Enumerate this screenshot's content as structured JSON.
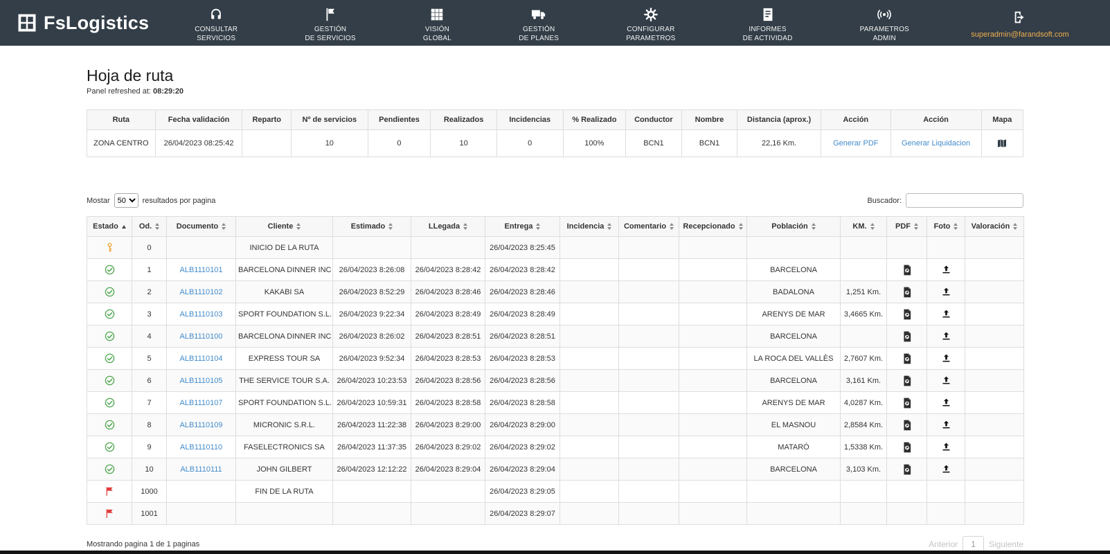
{
  "colors": {
    "navbar": "#333e48",
    "link": "#428bca",
    "success": "#47a447",
    "warning": "#f0a63c",
    "danger": "#e03b3b",
    "email": "#f0ad4e"
  },
  "brand": {
    "name": "FsLogistics",
    "icon": "brand-icon"
  },
  "nav": {
    "items": [
      {
        "icon": "headset-icon",
        "label_lines": [
          "CONSULTAR",
          "SERVICIOS"
        ]
      },
      {
        "icon": "flag-icon",
        "label_lines": [
          "GESTIÓN",
          "DE SERVICIOS"
        ]
      },
      {
        "icon": "grid-icon",
        "label_lines": [
          "VISIÓN",
          "GLOBAL"
        ]
      },
      {
        "icon": "truck-icon",
        "label_lines": [
          "GESTIÓN",
          "DE PLANES"
        ]
      },
      {
        "icon": "gear-icon",
        "label_lines": [
          "CONFIGURAR",
          "PARAMETROS"
        ]
      },
      {
        "icon": "report-icon",
        "label_lines": [
          "INFORMES",
          "DE ACTIVIDAD"
        ]
      },
      {
        "icon": "signal-icon",
        "label_lines": [
          "PARAMETROS",
          "ADMIN"
        ]
      }
    ],
    "user_email": "superadmin@farandsoft.com",
    "logout_icon": "logout-icon"
  },
  "page": {
    "title": "Hoja de ruta",
    "refreshed_label": "Panel refreshed at:",
    "refreshed_time": "08:29:20"
  },
  "summary_table": {
    "headers": [
      "Ruta",
      "Fecha validación",
      "Reparto",
      "Nº de servicios",
      "Pendientes",
      "Realizados",
      "Incidencias",
      "% Realizado",
      "Conductor",
      "Nombre",
      "Distancia (aprox.)",
      "Acción",
      "Acción",
      "Mapa"
    ],
    "row": {
      "ruta": "ZONA CENTRO",
      "fecha_validacion": "26/04/2023 08:25:42",
      "reparto": "",
      "n_servicios": "10",
      "pendientes": "0",
      "realizados": "10",
      "incidencias": "0",
      "pct_realizado": "100%",
      "conductor": "BCN1",
      "nombre": "BCN1",
      "distancia": "22,16 Km.",
      "accion_pdf": "Generar PDF",
      "accion_liquidacion": "Generar Liquidacion",
      "mapa_icon": "map-icon"
    }
  },
  "controls": {
    "show_label": "Mostar",
    "page_size": "50",
    "show_suffix": "resultados por pagina",
    "search_label": "Buscador:",
    "search_value": ""
  },
  "services_table": {
    "columns": [
      {
        "label": "Estado",
        "sort": "asc"
      },
      {
        "label": "Od.",
        "sort": "both"
      },
      {
        "label": "Documento",
        "sort": "both"
      },
      {
        "label": "Cliente",
        "sort": "both"
      },
      {
        "label": "Estimado",
        "sort": "both"
      },
      {
        "label": "LLegada",
        "sort": "both"
      },
      {
        "label": "Entrega",
        "sort": "both"
      },
      {
        "label": "Incidencia",
        "sort": "both"
      },
      {
        "label": "Comentario",
        "sort": "both"
      },
      {
        "label": "Recepcionado",
        "sort": "both"
      },
      {
        "label": "Población",
        "sort": "both"
      },
      {
        "label": "KM.",
        "sort": "both"
      },
      {
        "label": "PDF",
        "sort": "both"
      },
      {
        "label": "Foto",
        "sort": "both"
      },
      {
        "label": "Valoración",
        "sort": "both"
      }
    ],
    "rows": [
      {
        "status_icon": "key-icon",
        "od": "0",
        "documento": "",
        "cliente": "INICIO DE LA RUTA",
        "estimado": "",
        "llegada": "",
        "entrega": "26/04/2023 8:25:45",
        "incidencia": "",
        "comentario": "",
        "recepcionado": "",
        "poblacion": "",
        "km": "",
        "pdf": false,
        "foto": false,
        "valoracion": ""
      },
      {
        "status_icon": "check-icon",
        "od": "1",
        "documento": "ALB1110101",
        "cliente": "BARCELONA DINNER INC",
        "estimado": "26/04/2023 8:26:08",
        "llegada": "26/04/2023 8:28:42",
        "entrega": "26/04/2023 8:28:42",
        "incidencia": "",
        "comentario": "",
        "recepcionado": "",
        "poblacion": "BARCELONA",
        "km": "",
        "pdf": true,
        "foto": true,
        "valoracion": ""
      },
      {
        "status_icon": "check-icon",
        "od": "2",
        "documento": "ALB1110102",
        "cliente": "KAKABI SA",
        "estimado": "26/04/2023 8:52:29",
        "llegada": "26/04/2023 8:28:46",
        "entrega": "26/04/2023 8:28:46",
        "incidencia": "",
        "comentario": "",
        "recepcionado": "",
        "poblacion": "BADALONA",
        "km": "1,251 Km.",
        "pdf": true,
        "foto": true,
        "valoracion": ""
      },
      {
        "status_icon": "check-icon",
        "od": "3",
        "documento": "ALB1110103",
        "cliente": "SPORT FOUNDATION S.L.",
        "estimado": "26/04/2023 9:22:34",
        "llegada": "26/04/2023 8:28:49",
        "entrega": "26/04/2023 8:28:49",
        "incidencia": "",
        "comentario": "",
        "recepcionado": "",
        "poblacion": "ARENYS DE MAR",
        "km": "3,4665 Km.",
        "pdf": true,
        "foto": true,
        "valoracion": ""
      },
      {
        "status_icon": "check-icon",
        "od": "4",
        "documento": "ALB1110100",
        "cliente": "BARCELONA DINNER INC",
        "estimado": "26/04/2023 8:26:02",
        "llegada": "26/04/2023 8:28:51",
        "entrega": "26/04/2023 8:28:51",
        "incidencia": "",
        "comentario": "",
        "recepcionado": "",
        "poblacion": "BARCELONA",
        "km": "",
        "pdf": true,
        "foto": true,
        "valoracion": ""
      },
      {
        "status_icon": "check-icon",
        "od": "5",
        "documento": "ALB1110104",
        "cliente": "EXPRESS TOUR SA",
        "estimado": "26/04/2023 9:52:34",
        "llegada": "26/04/2023 8:28:53",
        "entrega": "26/04/2023 8:28:53",
        "incidencia": "",
        "comentario": "",
        "recepcionado": "",
        "poblacion": "LA ROCA DEL VALLÈS",
        "km": "2,7607 Km.",
        "pdf": true,
        "foto": true,
        "valoracion": ""
      },
      {
        "status_icon": "check-icon",
        "od": "6",
        "documento": "ALB1110105",
        "cliente": "THE SERVICE TOUR S.A.",
        "estimado": "26/04/2023 10:23:53",
        "llegada": "26/04/2023 8:28:56",
        "entrega": "26/04/2023 8:28:56",
        "incidencia": "",
        "comentario": "",
        "recepcionado": "",
        "poblacion": "BARCELONA",
        "km": "3,161 Km.",
        "pdf": true,
        "foto": true,
        "valoracion": ""
      },
      {
        "status_icon": "check-icon",
        "od": "7",
        "documento": "ALB1110107",
        "cliente": "SPORT FOUNDATION S.L.",
        "estimado": "26/04/2023 10:59:31",
        "llegada": "26/04/2023 8:28:58",
        "entrega": "26/04/2023 8:28:58",
        "incidencia": "",
        "comentario": "",
        "recepcionado": "",
        "poblacion": "ARENYS DE MAR",
        "km": "4,0287 Km.",
        "pdf": true,
        "foto": true,
        "valoracion": ""
      },
      {
        "status_icon": "check-icon",
        "od": "8",
        "documento": "ALB1110109",
        "cliente": "MICRONIC S.R.L.",
        "estimado": "26/04/2023 11:22:38",
        "llegada": "26/04/2023 8:29:00",
        "entrega": "26/04/2023 8:29:00",
        "incidencia": "",
        "comentario": "",
        "recepcionado": "",
        "poblacion": "EL MASNOU",
        "km": "2,8584 Km.",
        "pdf": true,
        "foto": true,
        "valoracion": ""
      },
      {
        "status_icon": "check-icon",
        "od": "9",
        "documento": "ALB1110110",
        "cliente": "FASELECTRONICS SA",
        "estimado": "26/04/2023 11:37:35",
        "llegada": "26/04/2023 8:29:02",
        "entrega": "26/04/2023 8:29:02",
        "incidencia": "",
        "comentario": "",
        "recepcionado": "",
        "poblacion": "MATARÓ",
        "km": "1,5338 Km.",
        "pdf": true,
        "foto": true,
        "valoracion": ""
      },
      {
        "status_icon": "check-icon",
        "od": "10",
        "documento": "ALB1110111",
        "cliente": "JOHN GILBERT",
        "estimado": "26/04/2023 12:12:22",
        "llegada": "26/04/2023 8:29:04",
        "entrega": "26/04/2023 8:29:04",
        "incidencia": "",
        "comentario": "",
        "recepcionado": "",
        "poblacion": "BARCELONA",
        "km": "3,103 Km.",
        "pdf": true,
        "foto": true,
        "valoracion": ""
      },
      {
        "status_icon": "flag-red-icon",
        "od": "1000",
        "documento": "",
        "cliente": "FIN DE LA RUTA",
        "estimado": "",
        "llegada": "",
        "entrega": "26/04/2023 8:29:05",
        "incidencia": "",
        "comentario": "",
        "recepcionado": "",
        "poblacion": "",
        "km": "",
        "pdf": false,
        "foto": false,
        "valoracion": ""
      },
      {
        "status_icon": "flag-red-icon",
        "od": "1001",
        "documento": "",
        "cliente": "",
        "estimado": "",
        "llegada": "",
        "entrega": "26/04/2023 8:29:07",
        "incidencia": "",
        "comentario": "",
        "recepcionado": "",
        "poblacion": "",
        "km": "",
        "pdf": false,
        "foto": false,
        "valoracion": ""
      }
    ]
  },
  "footer": {
    "summary": "Mostrando pagina 1 de 1 paginas",
    "prev": "Anterior",
    "page": "1",
    "next": "Siguiente"
  }
}
